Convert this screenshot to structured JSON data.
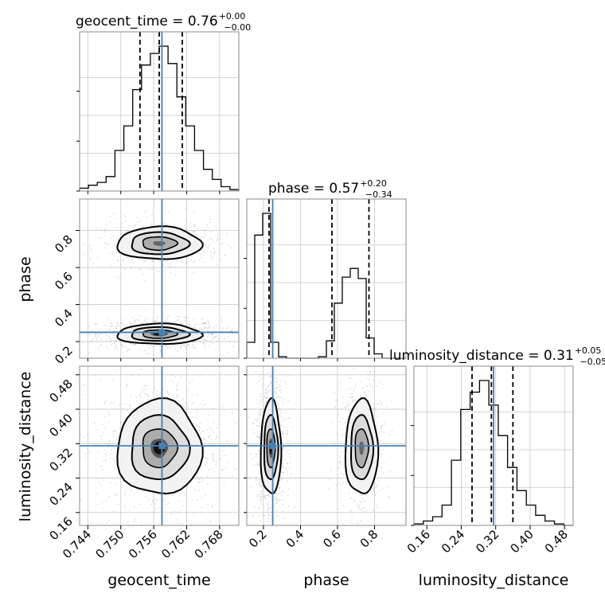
{
  "colors": {
    "truth": "#4682b4",
    "hist": "#000000",
    "grid": "#c8c8c8",
    "contour": "#000000"
  },
  "chart_data": {
    "type": "corner",
    "parameters": [
      {
        "name": "geocent_time",
        "axis_label": "geocent_time",
        "truth": 0.7575,
        "range": [
          0.7425,
          0.7715
        ],
        "ticks": [
          "0.744",
          "0.750",
          "0.756",
          "0.762",
          "0.768"
        ],
        "tick_values": [
          0.744,
          0.75,
          0.756,
          0.762,
          0.768
        ],
        "quantiles": [
          0.7535,
          0.757,
          0.7612
        ],
        "title": {
          "base": "geocent_time = 0.76",
          "plus": "+0.00",
          "minus": "−0.00"
        },
        "hist": [
          0.02,
          0.04,
          0.06,
          0.1,
          0.28,
          0.45,
          0.7,
          0.87,
          0.95,
          1.0,
          0.88,
          0.65,
          0.45,
          0.28,
          0.15,
          0.08,
          0.03,
          0.01
        ]
      },
      {
        "name": "phase",
        "axis_label": "phase",
        "truth": 0.25,
        "range": [
          0.11,
          0.97
        ],
        "ticks": [
          "0.2",
          "0.4",
          "0.6",
          "0.8"
        ],
        "tick_values": [
          0.2,
          0.4,
          0.6,
          0.8
        ],
        "quantiles": [
          0.23,
          0.57,
          0.77
        ],
        "title": {
          "base": "phase = 0.57",
          "plus": "+0.20",
          "minus": "−0.34"
        },
        "hist": [
          0.11,
          0.85,
          1.0,
          0.11,
          0.01,
          0.0,
          0.0,
          0.0,
          0.0,
          0.01,
          0.12,
          0.38,
          0.56,
          0.62,
          0.55,
          0.14,
          0.03,
          0.0,
          0.0,
          0.0
        ]
      },
      {
        "name": "luminosity_distance",
        "axis_label": "luminosity_distance",
        "truth": 0.315,
        "range": [
          0.13,
          0.5
        ],
        "ticks": [
          "0.16",
          "0.24",
          "0.32",
          "0.40",
          "0.48"
        ],
        "tick_values": [
          0.16,
          0.24,
          0.32,
          0.4,
          0.48
        ],
        "quantiles": [
          0.265,
          0.31,
          0.36
        ],
        "title": {
          "base": "luminosity_distance = 0.31",
          "plus": "+0.05",
          "minus": "−0.05"
        },
        "hist": [
          0.01,
          0.03,
          0.06,
          0.14,
          0.45,
          0.8,
          0.92,
          1.0,
          0.83,
          0.62,
          0.4,
          0.24,
          0.14,
          0.07,
          0.03,
          0.01,
          0.0
        ]
      }
    ],
    "pair_plots": [
      {
        "x": "geocent_time",
        "y": "phase",
        "blobs": [
          {
            "cx": 0.757,
            "cy": 0.24,
            "sx": 0.0035,
            "sy": 0.025,
            "w": 1.0
          },
          {
            "cx": 0.757,
            "cy": 0.73,
            "sx": 0.0035,
            "sy": 0.04,
            "w": 0.6
          }
        ]
      },
      {
        "x": "geocent_time",
        "y": "luminosity_distance",
        "blobs": [
          {
            "cx": 0.757,
            "cy": 0.31,
            "sx": 0.0035,
            "sy": 0.05,
            "w": 1.0
          }
        ]
      },
      {
        "x": "phase",
        "y": "luminosity_distance",
        "blobs": [
          {
            "cx": 0.24,
            "cy": 0.31,
            "sx": 0.025,
            "sy": 0.05,
            "w": 1.0
          },
          {
            "cx": 0.73,
            "cy": 0.31,
            "sx": 0.04,
            "sy": 0.05,
            "w": 0.6
          }
        ]
      }
    ],
    "grid": true
  }
}
